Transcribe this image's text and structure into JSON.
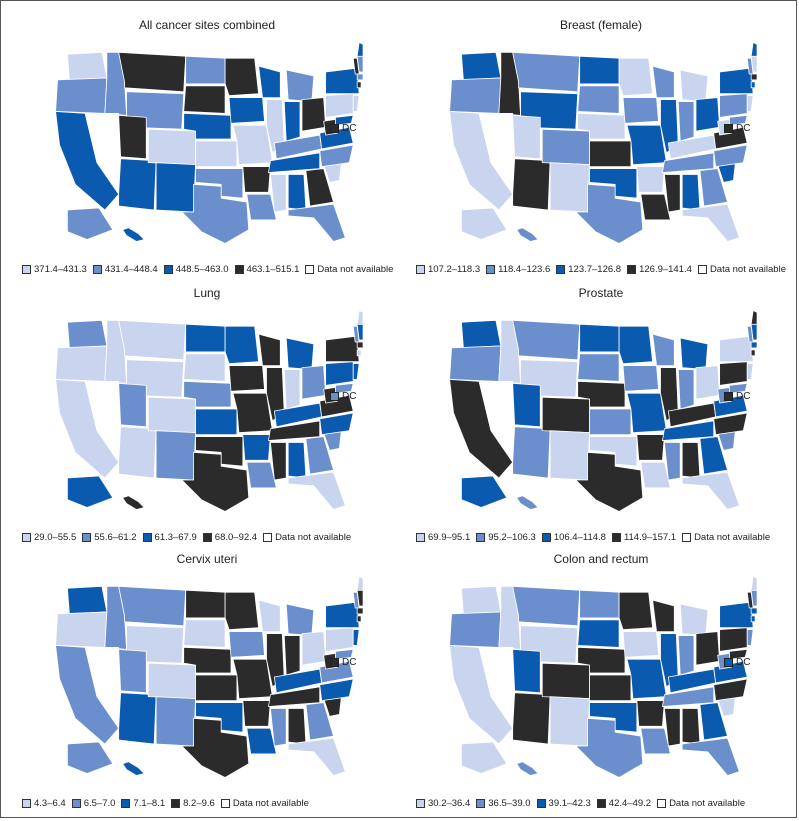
{
  "colors": {
    "c1": "#c9d4ee",
    "c2": "#6b8fcc",
    "c3": "#0a5bb0",
    "c4": "#2b2b2b",
    "na": "#ffffff"
  },
  "panels": [
    {
      "title": "All cancer sites combined",
      "legend": [
        "371.4–431.3",
        "431.4–448.4",
        "448.5–463.0",
        "463.1–515.1",
        "Data not available"
      ],
      "dc_label": "DC",
      "dc_class": "c4",
      "pattern": [
        1,
        2,
        3,
        2,
        3,
        4,
        2,
        4,
        3,
        1,
        3,
        2,
        4,
        3,
        1,
        2,
        2,
        4,
        3,
        1,
        4,
        2,
        3,
        1,
        2,
        3,
        4,
        2,
        3,
        1,
        3,
        4,
        2,
        1,
        2,
        3,
        4,
        1,
        3,
        2,
        4,
        3,
        2,
        1,
        3,
        4,
        2,
        3
      ]
    },
    {
      "title": "Breast (female)",
      "legend": [
        "107.2–118.3",
        "118.4–123.6",
        "123.7–126.8",
        "126.9–141.4",
        "Data not available"
      ],
      "dc_label": "DC",
      "dc_class": "c4",
      "pattern": [
        3,
        2,
        1,
        4,
        1,
        2,
        3,
        1,
        4,
        2,
        1,
        3,
        2,
        1,
        4,
        3,
        2,
        1,
        2,
        3,
        1,
        4,
        2,
        3,
        1,
        2,
        3,
        1,
        2,
        4,
        3,
        2,
        1,
        3,
        2,
        4,
        1,
        2,
        3,
        1,
        2,
        3,
        4,
        1,
        2,
        3,
        1,
        2
      ]
    },
    {
      "title": "Lung",
      "legend": [
        "29.0–55.5",
        "55.6–61.2",
        "61.3–67.9",
        "68.0–92.4",
        "Data not available"
      ],
      "dc_label": "DC",
      "dc_class": "c2",
      "pattern": [
        2,
        1,
        1,
        1,
        1,
        1,
        1,
        2,
        1,
        1,
        2,
        3,
        1,
        2,
        3,
        4,
        4,
        3,
        4,
        4,
        3,
        2,
        4,
        4,
        3,
        1,
        2,
        3,
        4,
        4,
        3,
        2,
        1,
        2,
        3,
        4,
        4,
        3,
        4,
        3,
        2,
        1,
        4,
        3,
        2,
        1,
        3,
        4
      ]
    },
    {
      "title": "Prostate",
      "legend": [
        "69.9–95.1",
        "95.2–106.3",
        "106.4–114.8",
        "114.9–157.1",
        "Data not available"
      ],
      "dc_label": "DC",
      "dc_class": "c4",
      "pattern": [
        3,
        2,
        4,
        1,
        4,
        2,
        1,
        3,
        2,
        4,
        1,
        3,
        2,
        4,
        2,
        1,
        4,
        3,
        2,
        3,
        4,
        1,
        2,
        4,
        3,
        2,
        1,
        4,
        3,
        2,
        4,
        3,
        1,
        2,
        4,
        3,
        2,
        4,
        1,
        3,
        2,
        4,
        3,
        1,
        2,
        4,
        3,
        2
      ]
    },
    {
      "title": "Cervix uteri",
      "legend": [
        "4.3–6.4",
        "6.5–7.0",
        "7.1–8.1",
        "8.2–9.6",
        "Data not available"
      ],
      "dc_label": "DC",
      "dc_class": "c4",
      "pattern": [
        3,
        1,
        2,
        2,
        1,
        2,
        1,
        2,
        3,
        1,
        2,
        4,
        1,
        4,
        4,
        3,
        4,
        4,
        2,
        4,
        4,
        3,
        1,
        4,
        2,
        4,
        1,
        3,
        4,
        2,
        4,
        2,
        1,
        4,
        3,
        2,
        4,
        1,
        3,
        4,
        2,
        1,
        4,
        3,
        2,
        4,
        2,
        3
      ]
    },
    {
      "title": "Colon and rectum",
      "legend": [
        "30.2–36.4",
        "36.5–39.0",
        "39.1–42.3",
        "42.4–49.2",
        "Data not available"
      ],
      "dc_label": "DC",
      "dc_class": "c3",
      "pattern": [
        1,
        2,
        1,
        1,
        4,
        2,
        1,
        3,
        4,
        4,
        1,
        2,
        3,
        4,
        4,
        3,
        2,
        4,
        1,
        3,
        4,
        2,
        4,
        3,
        1,
        2,
        4,
        3,
        2,
        4,
        4,
        3,
        2,
        1,
        4,
        3,
        2,
        4,
        3,
        2,
        4,
        1,
        3,
        2,
        4,
        3,
        1,
        2
      ]
    }
  ]
}
